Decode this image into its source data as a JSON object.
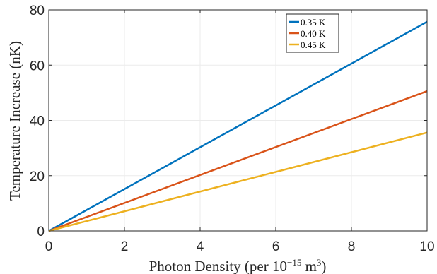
{
  "chart_data": {
    "type": "line",
    "title": "",
    "xlabel": "Photon Density (per 10",
    "xlabel_exp": "−15",
    "xlabel_unit": " m",
    "xlabel_unit_exp": "3",
    "xlabel_close": ")",
    "ylabel": "Temperature Increase (nK)",
    "xlim": [
      0,
      10
    ],
    "ylim": [
      0,
      80
    ],
    "xticks": [
      0,
      2,
      4,
      6,
      8,
      10
    ],
    "yticks": [
      0,
      20,
      40,
      60,
      80
    ],
    "grid": true,
    "legend_position": "top-right",
    "x": [
      0,
      10
    ],
    "series": [
      {
        "name": "0.35 K",
        "color": "#0072BD",
        "values": [
          0,
          75.7
        ]
      },
      {
        "name": "0.40 K",
        "color": "#D95319",
        "values": [
          0,
          50.6
        ]
      },
      {
        "name": "0.45 K",
        "color": "#EDB120",
        "values": [
          0,
          35.6
        ]
      }
    ]
  }
}
